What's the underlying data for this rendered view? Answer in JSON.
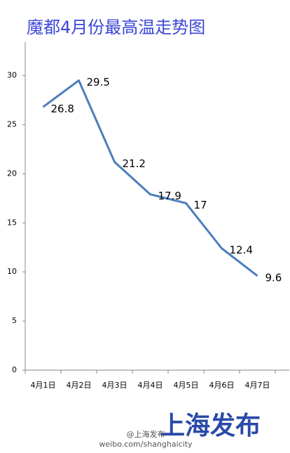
{
  "chart_data": {
    "type": "line",
    "title": "魔都4月份最高温走势图",
    "categories": [
      "4月1日",
      "4月2日",
      "4月3日",
      "4月4日",
      "4月5日",
      "4月6日",
      "4月7日"
    ],
    "values": [
      26.8,
      29.5,
      21.2,
      17.9,
      17,
      12.4,
      9.6
    ],
    "color": "#4a7ebb",
    "ylim": [
      0,
      33.4
    ],
    "yticks": [
      0,
      5,
      10,
      15,
      20,
      25,
      30
    ],
    "grid": false
  },
  "watermark": {
    "brand": "上海发布",
    "handle": "@上海发布",
    "url": "weibo.com/shanghaicity"
  }
}
